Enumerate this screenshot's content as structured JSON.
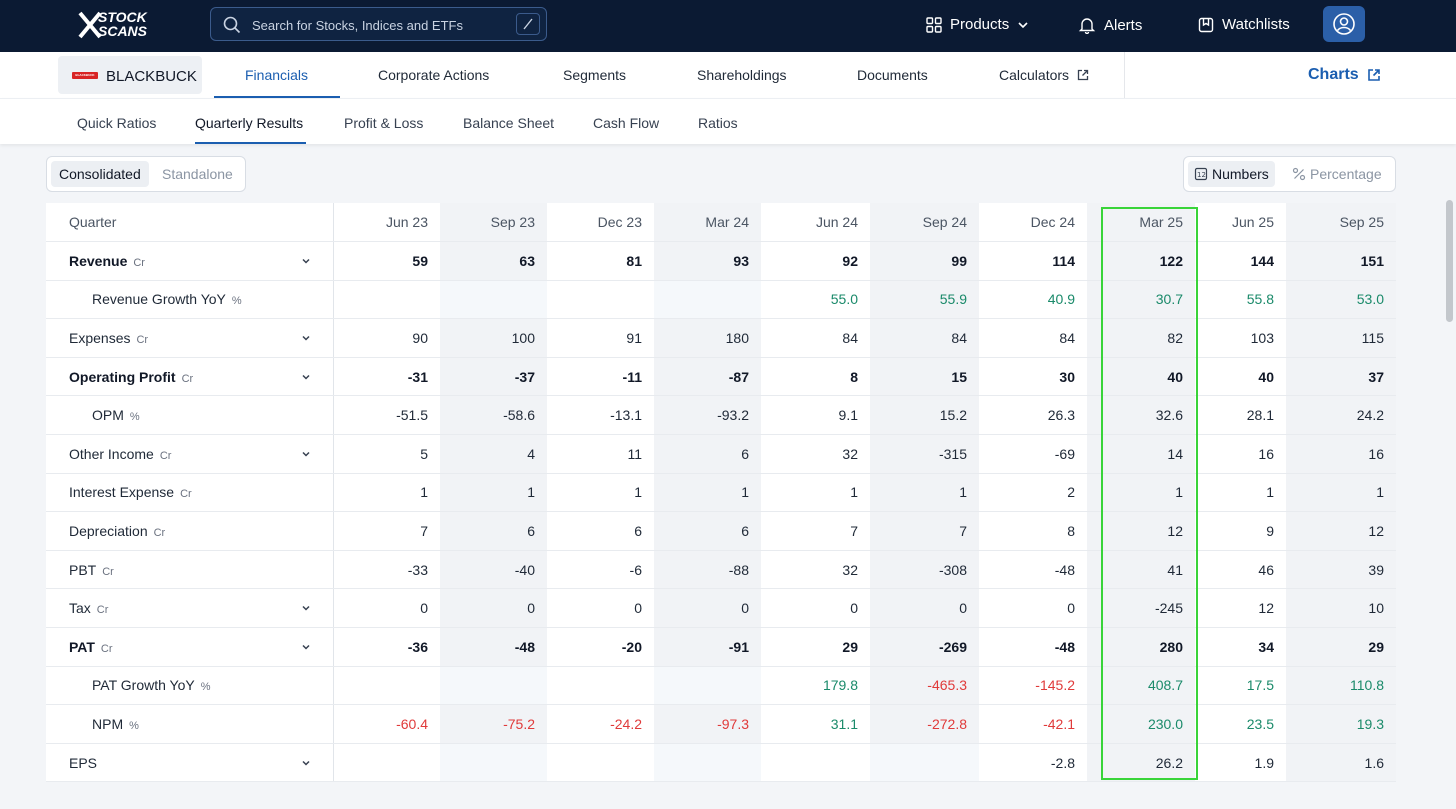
{
  "nav": {
    "logo_top": "STOCK",
    "logo_bottom": "SCANS",
    "search_placeholder": "Search for Stocks, Indices and ETFs",
    "products": "Products",
    "alerts": "Alerts",
    "watchlists": "Watchlists"
  },
  "company": {
    "name": "BLACKBUCK",
    "logo_text": "BLACKBUCK"
  },
  "tabs": [
    "Financials",
    "Corporate Actions",
    "Segments",
    "Shareholdings",
    "Documents",
    "Calculators"
  ],
  "charts_label": "Charts",
  "subtabs": [
    "Quick Ratios",
    "Quarterly Results",
    "Profit & Loss",
    "Balance Sheet",
    "Cash Flow",
    "Ratios"
  ],
  "toggle_scope": {
    "selected": "Consolidated",
    "other": "Standalone"
  },
  "toggle_mode": {
    "selected": "Numbers",
    "other": "Percentage"
  },
  "table": {
    "header_label": "Quarter",
    "columns": [
      "Jun 23",
      "Sep 23",
      "Dec 23",
      "Mar 24",
      "Jun 24",
      "Sep 24",
      "Dec 24",
      "Mar 25",
      "Jun 25",
      "Sep 25"
    ],
    "highlighted_column": "Mar 25",
    "rows": [
      {
        "label": "Revenue",
        "unit": "Cr",
        "bold": true,
        "expand": true,
        "indent": false,
        "values": [
          "59",
          "63",
          "81",
          "93",
          "92",
          "99",
          "114",
          "122",
          "144",
          "151"
        ]
      },
      {
        "label": "Revenue Growth YoY",
        "unit": "%",
        "bold": false,
        "expand": false,
        "indent": true,
        "values": [
          "",
          "",
          "",
          "",
          "55.0",
          "55.9",
          "40.9",
          "30.7",
          "55.8",
          "53.0"
        ]
      },
      {
        "label": "Expenses",
        "unit": "Cr",
        "bold": false,
        "expand": true,
        "indent": false,
        "values": [
          "90",
          "100",
          "91",
          "180",
          "84",
          "84",
          "84",
          "82",
          "103",
          "115"
        ]
      },
      {
        "label": "Operating Profit",
        "unit": "Cr",
        "bold": true,
        "expand": true,
        "indent": false,
        "values": [
          "-31",
          "-37",
          "-11",
          "-87",
          "8",
          "15",
          "30",
          "40",
          "40",
          "37"
        ]
      },
      {
        "label": "OPM",
        "unit": "%",
        "bold": false,
        "expand": false,
        "indent": true,
        "values": [
          "-51.5",
          "-58.6",
          "-13.1",
          "-93.2",
          "9.1",
          "15.2",
          "26.3",
          "32.6",
          "28.1",
          "24.2"
        ]
      },
      {
        "label": "Other Income",
        "unit": "Cr",
        "bold": false,
        "expand": true,
        "indent": false,
        "values": [
          "5",
          "4",
          "11",
          "6",
          "32",
          "-315",
          "-69",
          "14",
          "16",
          "16"
        ]
      },
      {
        "label": "Interest Expense",
        "unit": "Cr",
        "bold": false,
        "expand": false,
        "indent": false,
        "values": [
          "1",
          "1",
          "1",
          "1",
          "1",
          "1",
          "2",
          "1",
          "1",
          "1"
        ]
      },
      {
        "label": "Depreciation",
        "unit": "Cr",
        "bold": false,
        "expand": false,
        "indent": false,
        "values": [
          "7",
          "6",
          "6",
          "6",
          "7",
          "7",
          "8",
          "12",
          "9",
          "12"
        ]
      },
      {
        "label": "PBT",
        "unit": "Cr",
        "bold": false,
        "expand": false,
        "indent": false,
        "values": [
          "-33",
          "-40",
          "-6",
          "-88",
          "32",
          "-308",
          "-48",
          "41",
          "46",
          "39"
        ]
      },
      {
        "label": "Tax",
        "unit": "Cr",
        "bold": false,
        "expand": true,
        "indent": false,
        "values": [
          "0",
          "0",
          "0",
          "0",
          "0",
          "0",
          "0",
          "-245",
          "12",
          "10"
        ]
      },
      {
        "label": "PAT",
        "unit": "Cr",
        "bold": true,
        "expand": true,
        "indent": false,
        "values": [
          "-36",
          "-48",
          "-20",
          "-91",
          "29",
          "-269",
          "-48",
          "280",
          "34",
          "29"
        ]
      },
      {
        "label": "PAT Growth YoY",
        "unit": "%",
        "bold": false,
        "expand": false,
        "indent": true,
        "values": [
          "",
          "",
          "",
          "",
          "179.8",
          "-465.3",
          "-145.2",
          "408.7",
          "17.5",
          "110.8"
        ]
      },
      {
        "label": "NPM",
        "unit": "%",
        "bold": false,
        "expand": false,
        "indent": true,
        "values": [
          "-60.4",
          "-75.2",
          "-24.2",
          "-97.3",
          "31.1",
          "-272.8",
          "-42.1",
          "230.0",
          "23.5",
          "19.3"
        ]
      },
      {
        "label": "EPS",
        "unit": "",
        "bold": false,
        "expand": true,
        "indent": false,
        "values": [
          "",
          "",
          "",
          "",
          "",
          "",
          "-2.8",
          "26.2",
          "1.9",
          "1.6"
        ]
      }
    ],
    "colored_rows": [
      "Revenue Growth YoY",
      "PAT Growth YoY",
      "NPM"
    ]
  },
  "colors": {
    "positive": "#1a8a6a",
    "negative": "#e03a3a",
    "accent": "#1b5eb0",
    "highlight": "#39d439",
    "nav_bg": "#0b1a33"
  }
}
